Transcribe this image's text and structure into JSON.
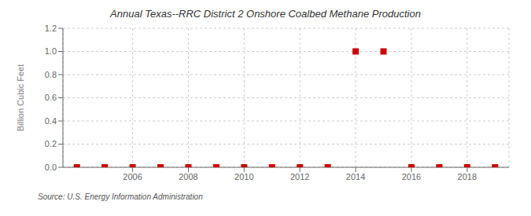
{
  "chart_data": {
    "type": "scatter",
    "title": "Annual Texas--RRC District 2 Onshore Coalbed Methane Production",
    "ylabel": "Billion Cubic Feet",
    "annotation": "Source: U.S. Energy Information Administration",
    "x": [
      2004,
      2005,
      2006,
      2007,
      2008,
      2009,
      2010,
      2011,
      2012,
      2013,
      2014,
      2015,
      2016,
      2017,
      2018,
      2019
    ],
    "values": [
      0.0,
      0.0,
      0.0,
      0.0,
      0.0,
      0.0,
      0.0,
      0.0,
      0.0,
      0.0,
      1.0,
      1.0,
      0.0,
      0.0,
      0.0,
      0.0
    ],
    "color": "#cc0000",
    "marker": "square",
    "xlim": [
      2003.5,
      2019.5
    ],
    "xticks": [
      2006,
      2008,
      2010,
      2012,
      2014,
      2016,
      2018
    ],
    "ylim": [
      0.0,
      1.2
    ],
    "yticks": [
      {
        "value": 0,
        "label": "0.0"
      },
      0.2,
      0.4,
      0.6,
      0.8,
      {
        "value": 1,
        "label": "1.0"
      },
      1.2
    ],
    "grid": true
  }
}
